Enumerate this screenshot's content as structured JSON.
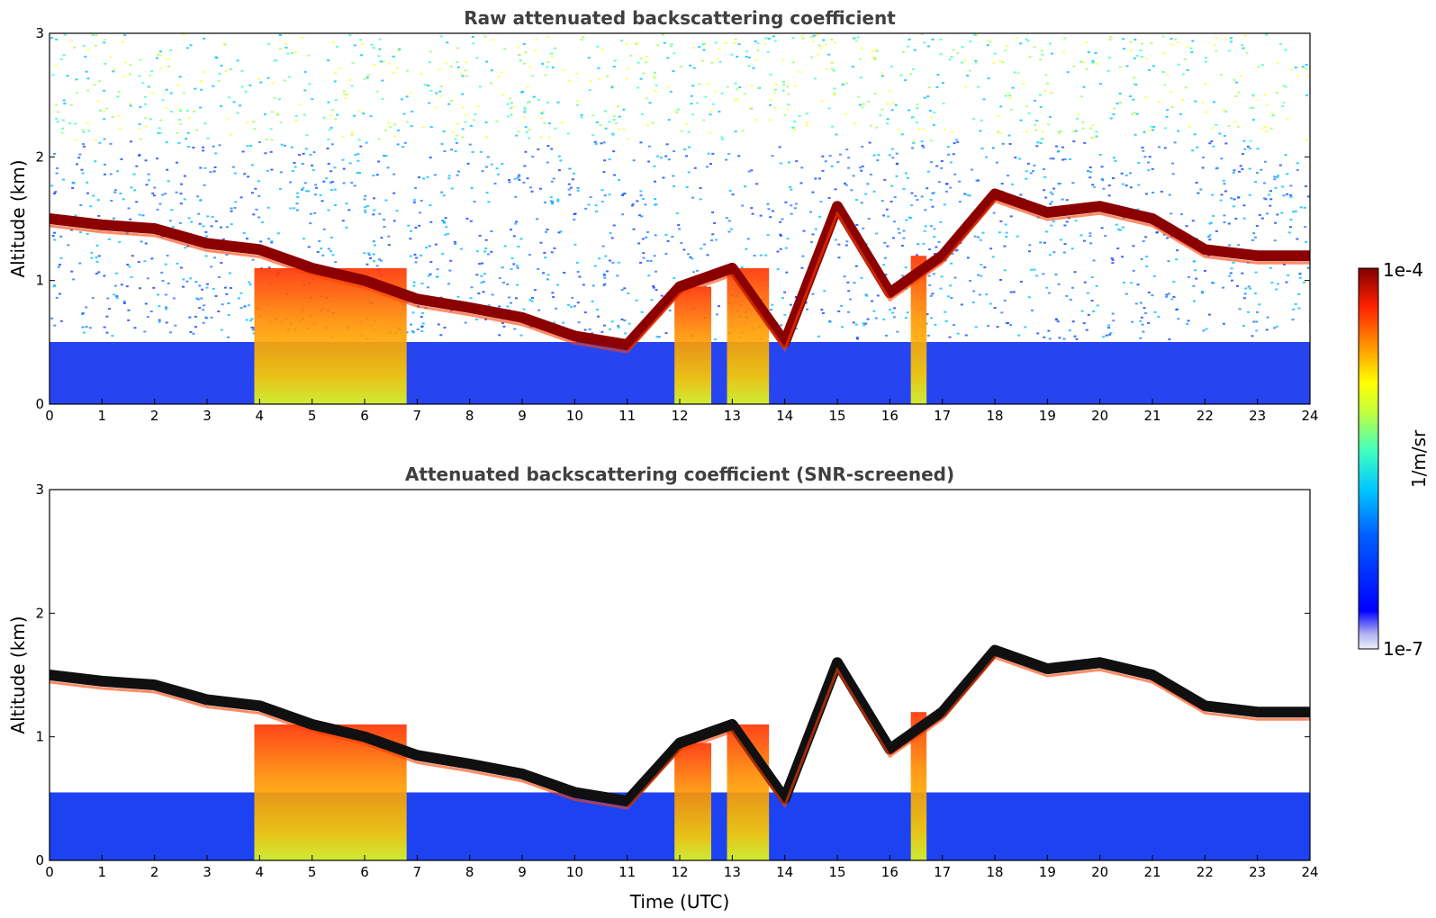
{
  "chart_data": [
    {
      "type": "heatmap",
      "title": "Raw attenuated backscattering coefficient",
      "xlabel": "",
      "ylabel": "Altitude (km)",
      "xlim": [
        0,
        24
      ],
      "ylim": [
        0,
        3
      ],
      "x_ticks": [
        "0",
        "1",
        "2",
        "3",
        "4",
        "5",
        "6",
        "7",
        "8",
        "9",
        "10",
        "11",
        "12",
        "13",
        "14",
        "15",
        "16",
        "17",
        "18",
        "19",
        "20",
        "21",
        "22",
        "23",
        "24"
      ],
      "y_ticks": [
        "0",
        "1",
        "2",
        "3"
      ],
      "cloud_base_km": {
        "hours": [
          0,
          1,
          2,
          3,
          4,
          5,
          6,
          7,
          8,
          9,
          10,
          11,
          12,
          13,
          14,
          15,
          16,
          17,
          18,
          19,
          20,
          21,
          22,
          23,
          24
        ],
        "values": [
          1.5,
          1.45,
          1.42,
          1.3,
          1.25,
          1.1,
          1.0,
          0.85,
          0.78,
          0.7,
          0.55,
          0.48,
          0.95,
          1.1,
          0.5,
          1.6,
          0.9,
          1.2,
          1.7,
          1.55,
          1.6,
          1.5,
          1.25,
          1.2,
          1.2
        ]
      }
    },
    {
      "type": "heatmap",
      "title": "Attenuated backscattering coefficient (SNR-screened)",
      "xlabel": "Time (UTC)",
      "ylabel": "Altitude (km)",
      "xlim": [
        0,
        24
      ],
      "ylim": [
        0,
        3
      ],
      "x_ticks": [
        "0",
        "1",
        "2",
        "3",
        "4",
        "5",
        "6",
        "7",
        "8",
        "9",
        "10",
        "11",
        "12",
        "13",
        "14",
        "15",
        "16",
        "17",
        "18",
        "19",
        "20",
        "21",
        "22",
        "23",
        "24"
      ],
      "y_ticks": [
        "0",
        "1",
        "2",
        "3"
      ]
    }
  ],
  "colorbar": {
    "label": "1/m/sr",
    "max_label": "1e-4",
    "min_label": "1e-7",
    "colors": [
      "#e8e8f8",
      "#c8c8f0",
      "#8888f0",
      "#0000ff",
      "#0040ff",
      "#0090ff",
      "#00d0ff",
      "#40ffc0",
      "#a0ff60",
      "#ffff00",
      "#ffc000",
      "#ff7000",
      "#ff2000",
      "#c00000",
      "#800000"
    ]
  }
}
